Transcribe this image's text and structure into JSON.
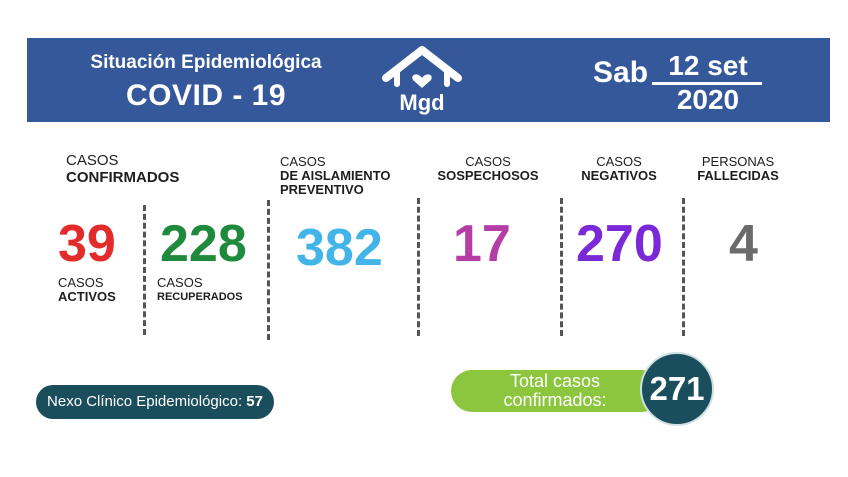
{
  "header": {
    "title_line1": "Situación Epidemiológica",
    "title_line2": "COVID - 19",
    "logo_text": "Mgd",
    "day": "Sab",
    "date": "12 set",
    "year": "2020"
  },
  "confirmados": {
    "label_line1": "CASOS",
    "label_line2": "CONFIRMADOS"
  },
  "activos": {
    "value": "39",
    "label_line1": "CASOS",
    "label_line2": "ACTIVOS",
    "color": "#e32b2b"
  },
  "recuperados": {
    "value": "228",
    "label_line1": "CASOS",
    "label_line2": "RECUPERADOS",
    "color": "#1f8a3c"
  },
  "aislamiento": {
    "value": "382",
    "label_line1": "CASOS",
    "label_line2": "DE AISLAMIENTO",
    "label_line3": "PREVENTIVO",
    "color": "#43b4e8"
  },
  "sospechosos": {
    "value": "17",
    "label_line1": "CASOS",
    "label_line2": "SOSPECHOSOS",
    "color": "#b53ea6"
  },
  "negativos": {
    "value": "270",
    "label_line1": "CASOS",
    "label_line2": "NEGATIVOS",
    "color": "#7a28d8"
  },
  "fallecidas": {
    "value": "4",
    "label_line1": "PERSONAS",
    "label_line2": "FALLECIDAS",
    "color": "#6b6b6b"
  },
  "nexo": {
    "label": "Nexo Clínico Epidemiológico:",
    "value": "57"
  },
  "total": {
    "label_line1": "Total casos",
    "label_line2": "confirmados:",
    "value": "271"
  }
}
